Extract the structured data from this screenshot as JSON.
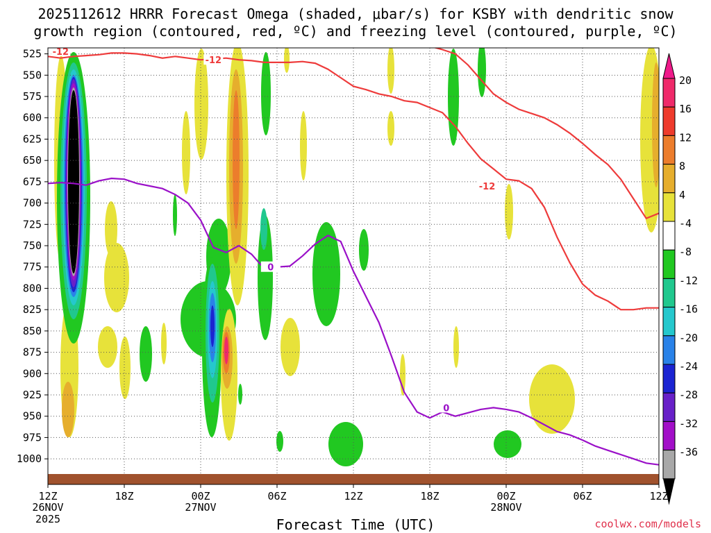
{
  "title_line1": "2025112612 HRRR Forecast Omega (shaded, μbar/s) for KSBY with dendritic snow",
  "title_line2": "growth region (contoured, red, ºC) and freezing level (contoured, purple, ºC)",
  "x_axis_label": "Forecast Time (UTC)",
  "credit": "coolwx.com/models",
  "chart_data": {
    "type": "contour",
    "y_ticks": [
      525,
      550,
      575,
      600,
      625,
      650,
      675,
      700,
      725,
      750,
      775,
      800,
      825,
      850,
      875,
      900,
      925,
      950,
      975,
      1000
    ],
    "y_range": [
      518,
      1030
    ],
    "x_range_hours": [
      0,
      48
    ],
    "x_ticks": [
      {
        "hour": 0,
        "label": "12Z",
        "sub1": "26NOV",
        "sub2": "2025"
      },
      {
        "hour": 6,
        "label": "18Z",
        "sub1": "",
        "sub2": ""
      },
      {
        "hour": 12,
        "label": "00Z",
        "sub1": "27NOV",
        "sub2": ""
      },
      {
        "hour": 18,
        "label": "06Z",
        "sub1": "",
        "sub2": ""
      },
      {
        "hour": 24,
        "label": "12Z",
        "sub1": "",
        "sub2": ""
      },
      {
        "hour": 30,
        "label": "18Z",
        "sub1": "",
        "sub2": ""
      },
      {
        "hour": 36,
        "label": "00Z",
        "sub1": "28NOV",
        "sub2": ""
      },
      {
        "hour": 42,
        "label": "06Z",
        "sub1": "",
        "sub2": ""
      },
      {
        "hour": 48,
        "label": "12Z",
        "sub1": "",
        "sub2": ""
      }
    ],
    "colorbar": [
      {
        "label": "20",
        "color": "#ef2a6a"
      },
      {
        "label": "16",
        "color": "#ee3b2c"
      },
      {
        "label": "12",
        "color": "#ec7d2c"
      },
      {
        "label": "8",
        "color": "#e6ae2d"
      },
      {
        "label": "4",
        "color": "#e7e23a"
      },
      {
        "label": "-4",
        "color": "#ffffff"
      },
      {
        "label": "-8",
        "color": "#21c821"
      },
      {
        "label": "-12",
        "color": "#20c88e"
      },
      {
        "label": "-16",
        "color": "#25c8cd"
      },
      {
        "label": "-20",
        "color": "#2a82e8"
      },
      {
        "label": "-24",
        "color": "#1b24d2"
      },
      {
        "label": "-28",
        "color": "#6820c8"
      },
      {
        "label": "-32",
        "color": "#a20fc8"
      },
      {
        "label": "-36",
        "color": "#a8a8a8"
      }
    ],
    "colorbar_top_color": "#ef1a8a",
    "colorbar_bottom_color": "#000000",
    "contour_dgz_label": "-12",
    "contour_freezing_label": "0",
    "dgz_line_upper": [
      [
        0,
        528
      ],
      [
        1,
        530
      ],
      [
        2,
        528
      ],
      [
        3,
        527
      ],
      [
        4,
        526
      ],
      [
        5,
        524
      ],
      [
        6,
        524
      ],
      [
        7,
        525
      ],
      [
        8,
        527
      ],
      [
        9,
        530
      ],
      [
        10,
        528
      ],
      [
        11,
        530
      ],
      [
        12,
        532
      ],
      [
        13,
        531
      ],
      [
        14,
        530
      ],
      [
        15,
        532
      ],
      [
        16,
        533
      ],
      [
        17,
        535
      ],
      [
        18,
        535
      ],
      [
        19,
        535
      ],
      [
        20,
        534
      ],
      [
        21,
        536
      ],
      [
        22,
        543
      ],
      [
        23,
        553
      ],
      [
        24,
        563
      ],
      [
        25,
        567
      ],
      [
        26,
        572
      ],
      [
        27,
        575
      ],
      [
        28,
        580
      ],
      [
        29,
        582
      ],
      [
        30,
        588
      ],
      [
        31,
        594
      ],
      [
        32,
        610
      ],
      [
        33,
        630
      ],
      [
        34,
        648
      ],
      [
        35,
        660
      ],
      [
        36,
        672
      ],
      [
        37,
        674
      ],
      [
        38,
        683
      ],
      [
        39,
        705
      ],
      [
        40,
        740
      ],
      [
        41,
        770
      ],
      [
        42,
        795
      ],
      [
        43,
        808
      ],
      [
        44,
        815
      ],
      [
        45,
        825
      ],
      [
        46,
        825
      ],
      [
        47,
        823
      ],
      [
        48,
        823
      ]
    ],
    "dgz_line_lower": [
      [
        29,
        515
      ],
      [
        30,
        516
      ],
      [
        31,
        520
      ],
      [
        32,
        525
      ],
      [
        33,
        538
      ],
      [
        34,
        555
      ],
      [
        35,
        572
      ],
      [
        36,
        582
      ],
      [
        37,
        590
      ],
      [
        38,
        595
      ],
      [
        39,
        600
      ],
      [
        40,
        608
      ],
      [
        41,
        618
      ],
      [
        42,
        630
      ],
      [
        43,
        643
      ],
      [
        44,
        655
      ],
      [
        45,
        672
      ],
      [
        46,
        695
      ],
      [
        47,
        718
      ],
      [
        48,
        712
      ]
    ],
    "freezing_line": [
      [
        0,
        677
      ],
      [
        1,
        676
      ],
      [
        2,
        677
      ],
      [
        3,
        679
      ],
      [
        4,
        674
      ],
      [
        5,
        671
      ],
      [
        6,
        672
      ],
      [
        7,
        677
      ],
      [
        8,
        680
      ],
      [
        9,
        683
      ],
      [
        10,
        690
      ],
      [
        11,
        700
      ],
      [
        12,
        720
      ],
      [
        13,
        752
      ],
      [
        14,
        758
      ],
      [
        15,
        750
      ],
      [
        16,
        760
      ],
      [
        17,
        777
      ],
      [
        18,
        775
      ],
      [
        19,
        774
      ],
      [
        20,
        762
      ],
      [
        21,
        748
      ],
      [
        22,
        738
      ],
      [
        23,
        745
      ],
      [
        24,
        780
      ],
      [
        25,
        810
      ],
      [
        26,
        840
      ],
      [
        27,
        880
      ],
      [
        28,
        922
      ],
      [
        29,
        945
      ],
      [
        30,
        952
      ],
      [
        31,
        945
      ],
      [
        32,
        950
      ],
      [
        33,
        946
      ],
      [
        34,
        942
      ],
      [
        35,
        940
      ],
      [
        36,
        942
      ],
      [
        37,
        945
      ],
      [
        38,
        952
      ],
      [
        39,
        960
      ],
      [
        40,
        968
      ],
      [
        41,
        972
      ],
      [
        42,
        978
      ],
      [
        43,
        985
      ],
      [
        44,
        990
      ],
      [
        45,
        995
      ],
      [
        46,
        1000
      ],
      [
        47,
        1005
      ],
      [
        48,
        1007
      ]
    ]
  }
}
